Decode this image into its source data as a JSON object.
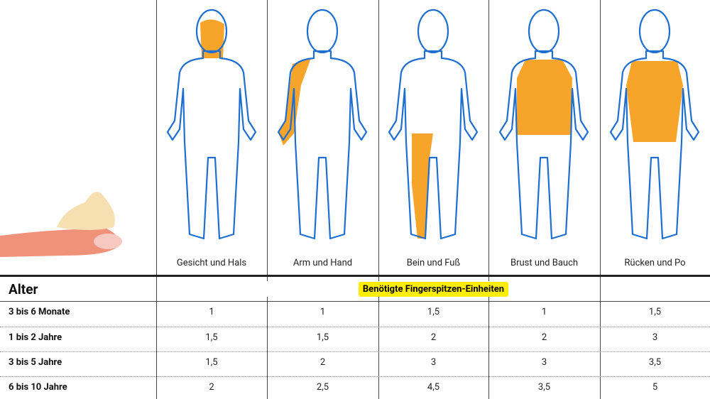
{
  "header": {
    "body_areas": [
      "Gesicht und Hals",
      "Arm und Hand",
      "Bein und Fuß",
      "Brust und Bauch",
      "Rücken und Po"
    ]
  },
  "table": {
    "row_header": "Alter",
    "banner": "Benötigte Fingerspitzen-Einheiten",
    "rows": [
      {
        "age": "3 bis 6 Monate",
        "values": [
          "1",
          "1",
          "1,5",
          "1",
          "1,5"
        ]
      },
      {
        "age": "1 bis 2 Jahre",
        "values": [
          "1,5",
          "1,5",
          "2",
          "2",
          "3"
        ]
      },
      {
        "age": "3 bis 5 Jahre",
        "values": [
          "1,5",
          "2",
          "3",
          "3",
          "3,5"
        ]
      },
      {
        "age": "6 bis 10 Jahre",
        "values": [
          "2",
          "2,5",
          "4,5",
          "3,5",
          "5"
        ]
      }
    ]
  }
}
